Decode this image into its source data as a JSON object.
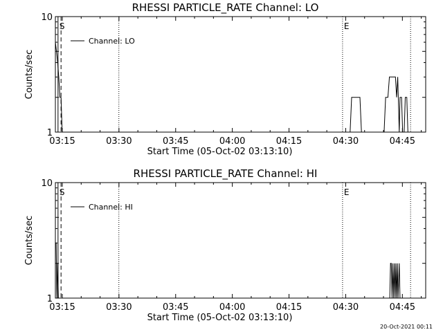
{
  "footer_timestamp": "20-Oct-2021 00:11",
  "chart_data": [
    {
      "type": "line",
      "title": "RHESSI PARTICLE_RATE Channel: LO",
      "xlabel": "Start Time (05-Oct-02 03:13:10)",
      "ylabel": "Counts/sec",
      "yscale": "log",
      "ylim": [
        1,
        10
      ],
      "ytick_labels": [
        "1",
        "10"
      ],
      "x_units": "minutes after 03:13:10",
      "xlim": [
        0,
        98
      ],
      "xticks": [
        1.83,
        16.83,
        31.83,
        46.83,
        61.83,
        76.83,
        91.83
      ],
      "xtick_labels": [
        "03:15",
        "03:30",
        "03:45",
        "04:00",
        "04:15",
        "04:30",
        "04:45"
      ],
      "legend": "Channel: LO",
      "markers": [
        {
          "label": "S",
          "x": 0.7,
          "style": "solid"
        },
        {
          "label": "",
          "x": 1.5,
          "style": "dashed"
        },
        {
          "label": "",
          "x": 16.8,
          "style": "dotted"
        },
        {
          "label": "E",
          "x": 76.0,
          "style": "dotted"
        },
        {
          "label": "",
          "x": 94.0,
          "style": "dotted"
        }
      ],
      "series": [
        {
          "name": "Channel: LO",
          "points": [
            [
              0.0,
              6
            ],
            [
              0.3,
              5
            ],
            [
              0.6,
              4
            ],
            [
              0.9,
              3
            ],
            [
              1.2,
              2
            ],
            [
              1.5,
              2
            ],
            [
              1.8,
              1
            ],
            [
              78.0,
              1
            ],
            [
              78.4,
              2
            ],
            [
              80.6,
              2
            ],
            [
              81.0,
              1
            ],
            [
              87.0,
              1
            ],
            [
              87.4,
              2
            ],
            [
              88.0,
              2
            ],
            [
              88.4,
              3
            ],
            [
              90.0,
              3
            ],
            [
              90.3,
              2
            ],
            [
              90.6,
              3
            ],
            [
              91.0,
              1
            ],
            [
              91.2,
              2
            ],
            [
              91.6,
              2
            ],
            [
              91.9,
              1
            ],
            [
              92.3,
              1
            ],
            [
              92.6,
              2
            ],
            [
              93.0,
              2
            ],
            [
              93.3,
              1
            ]
          ]
        }
      ]
    },
    {
      "type": "line",
      "title": "RHESSI PARTICLE_RATE Channel: HI",
      "xlabel": "Start Time (05-Oct-02 03:13:10)",
      "ylabel": "Counts/sec",
      "yscale": "log",
      "ylim": [
        1,
        10
      ],
      "ytick_labels": [
        "1",
        "10"
      ],
      "x_units": "minutes after 03:13:10",
      "xlim": [
        0,
        98
      ],
      "xticks": [
        1.83,
        16.83,
        31.83,
        46.83,
        61.83,
        76.83,
        91.83
      ],
      "xtick_labels": [
        "03:15",
        "03:30",
        "03:45",
        "04:00",
        "04:15",
        "04:30",
        "04:45"
      ],
      "legend": "Channel: HI",
      "markers": [
        {
          "label": "S",
          "x": 0.7,
          "style": "solid"
        },
        {
          "label": "",
          "x": 1.5,
          "style": "dashed"
        },
        {
          "label": "",
          "x": 16.8,
          "style": "dotted"
        },
        {
          "label": "E",
          "x": 76.0,
          "style": "dotted"
        },
        {
          "label": "",
          "x": 94.0,
          "style": "dotted"
        }
      ],
      "series": [
        {
          "name": "Channel: HI",
          "points": [
            [
              0.0,
              3
            ],
            [
              0.2,
              3
            ],
            [
              0.4,
              1
            ],
            [
              0.6,
              2
            ],
            [
              0.8,
              1
            ],
            [
              88.5,
              1
            ],
            [
              88.7,
              2
            ],
            [
              88.9,
              2
            ],
            [
              89.1,
              1
            ],
            [
              89.3,
              2
            ],
            [
              89.5,
              1
            ],
            [
              89.7,
              2
            ],
            [
              89.9,
              1
            ],
            [
              90.1,
              2
            ],
            [
              90.3,
              1
            ],
            [
              90.5,
              2
            ],
            [
              90.7,
              1
            ],
            [
              91.0,
              2
            ],
            [
              91.2,
              1
            ]
          ]
        }
      ]
    }
  ]
}
